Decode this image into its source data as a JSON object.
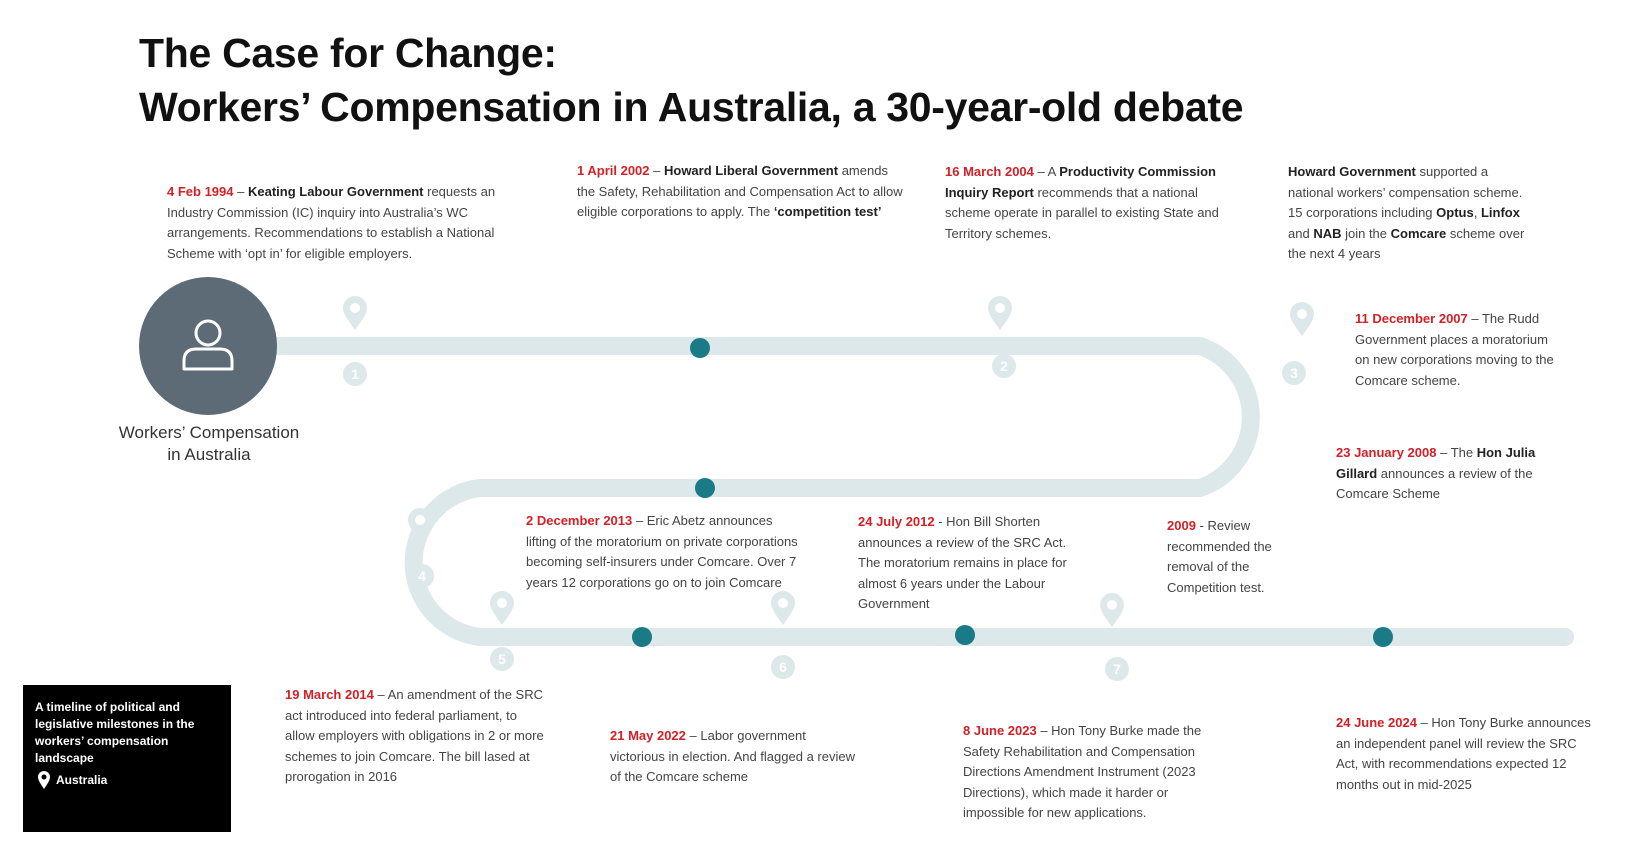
{
  "title": {
    "line1": "The Case for Change:",
    "line2": "Workers’ Compensation in Australia, a 30-year-old debate"
  },
  "hub": {
    "icon": "person-icon",
    "label_line1": "Workers’ Compensation",
    "label_line2": "in Australia"
  },
  "colors": {
    "accent_red": "#d32026",
    "track": "#dde8eb",
    "dot": "#1a7a86",
    "hub": "#5c6b76"
  },
  "markers": [
    "1",
    "2",
    "3",
    "4",
    "5",
    "6",
    "7"
  ],
  "events": {
    "e1994": {
      "date": "4 Feb 1994",
      "sep": " – ",
      "actor": "Keating Labour Government",
      "text": " requests an Industry Commission (IC) inquiry into Australia’s WC arrangements. Recommendations to establish a National Scheme with ‘opt in’ for eligible employers."
    },
    "e2002": {
      "date": "1 April 2002",
      "sep": " – ",
      "actor": "Howard Liberal Government",
      "text": " amends the Safety, Rehabilitation and Compensation Act to allow eligible corporations to apply. The ",
      "emph": "‘competition test’"
    },
    "e2004": {
      "date": "16 March 2004",
      "sep": " – A ",
      "actor": "Productivity Commission Inquiry Report",
      "text": " recommends that a national scheme operate in parallel to existing State and Territory schemes."
    },
    "ehoward": {
      "actor": "Howard Government",
      "t1": " supported a national workers’ compensation scheme. 15 corporations including ",
      "c1": "Optus",
      "t2": ", ",
      "c2": "Linfox",
      "t3": " and ",
      "c3": "NAB",
      "t4": " join the ",
      "c4": "Comcare",
      "t5": " scheme over the next 4 years"
    },
    "e2007": {
      "date": "11 December 2007",
      "text": " – The Rudd Government places a moratorium on new corporations moving to the Comcare scheme."
    },
    "e2008": {
      "date": "23 January 2008",
      "sep": " – The ",
      "actor": "Hon Julia Gillard",
      "text": " announces a review of the Comcare Scheme"
    },
    "e2009": {
      "date": "2009",
      "text": " - Review recommended the removal of the Competition test."
    },
    "e2012": {
      "date": "24 July 2012",
      "text": " - Hon Bill Shorten announces a review of the SRC Act. The moratorium remains in place for almost 6 years under the Labour Government"
    },
    "e2013": {
      "date": "2 December 2013",
      "text": " – Eric Abetz announces lifting of the moratorium on private corporations becoming self-insurers under Comcare. Over 7 years 12 corporations go on to join Comcare"
    },
    "e2014": {
      "date": "19 March 2014",
      "text": " – An amendment of the SRC act introduced into federal parliament, to allow employers with obligations in 2 or more schemes to join Comcare. The bill lased at prorogation in 2016"
    },
    "e2022": {
      "date": "21 May 2022",
      "text": " – Labor government victorious in election. And flagged a review of the Comcare scheme"
    },
    "e2023": {
      "date": "8 June 2023",
      "text": " – Hon Tony Burke made the Safety Rehabilitation and Compensation Directions Amendment Instrument (2023 Directions), which made it harder or impossible for new applications."
    },
    "e2024": {
      "date": "24 June 2024",
      "text": " – Hon Tony Burke announces an independent panel will review the SRC Act, with recommendations expected 12 months out in mid-2025"
    }
  },
  "legend_box": {
    "text": "A timeline of political and legislative milestones in the workers’ compensation landscape",
    "location_icon": "location-pin-icon",
    "location": "Australia"
  }
}
